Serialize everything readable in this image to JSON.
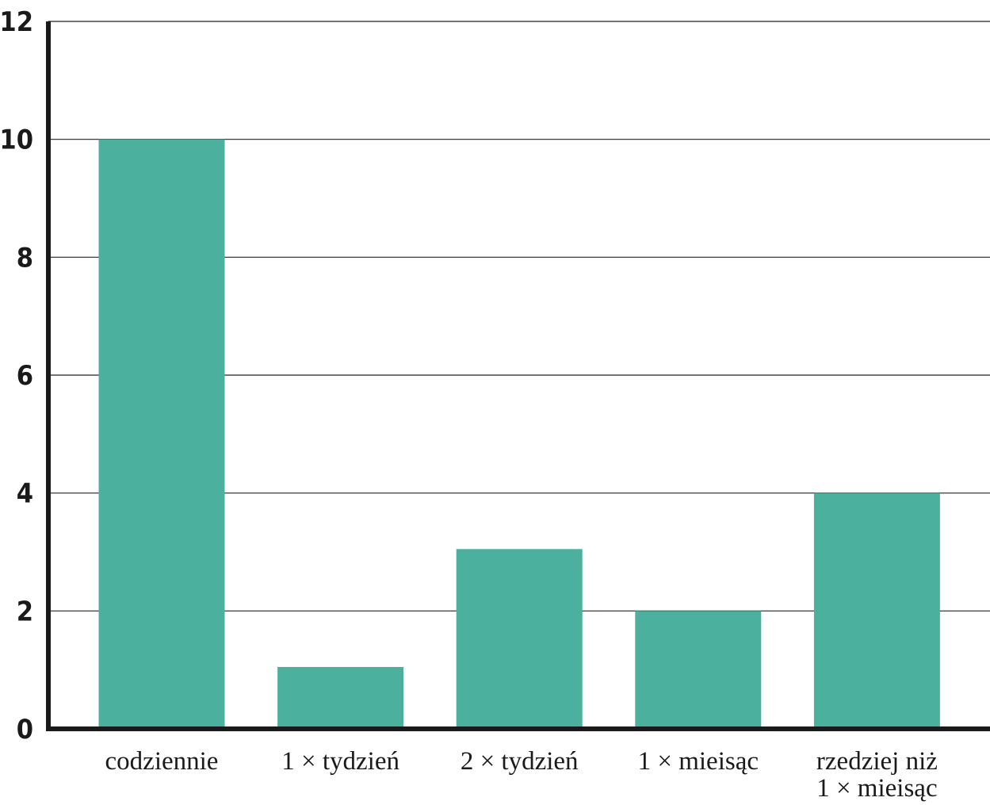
{
  "chart_data": {
    "type": "bar",
    "categories": [
      "codziennie",
      "1 × tydzień",
      "2 × tydzień",
      "1 × mieisąc",
      "rzedziej niż 1 × mieisąc"
    ],
    "category_lines": [
      [
        "codziennie"
      ],
      [
        "1 × tydzień"
      ],
      [
        "2 × tydzień"
      ],
      [
        "1 × mieisąc"
      ],
      [
        "rzedziej niż",
        "1 × mieisąc"
      ]
    ],
    "values": [
      10,
      1.05,
      3.05,
      2,
      4
    ],
    "ylim": [
      0,
      12
    ],
    "yticks": [
      "0",
      "2",
      "4",
      "6",
      "8",
      "10",
      "12"
    ],
    "ytick_values": [
      0,
      2,
      4,
      6,
      8,
      10,
      12
    ],
    "grid": true,
    "bar_color": "#4bb09e",
    "title": "",
    "xlabel": "",
    "ylabel": ""
  }
}
